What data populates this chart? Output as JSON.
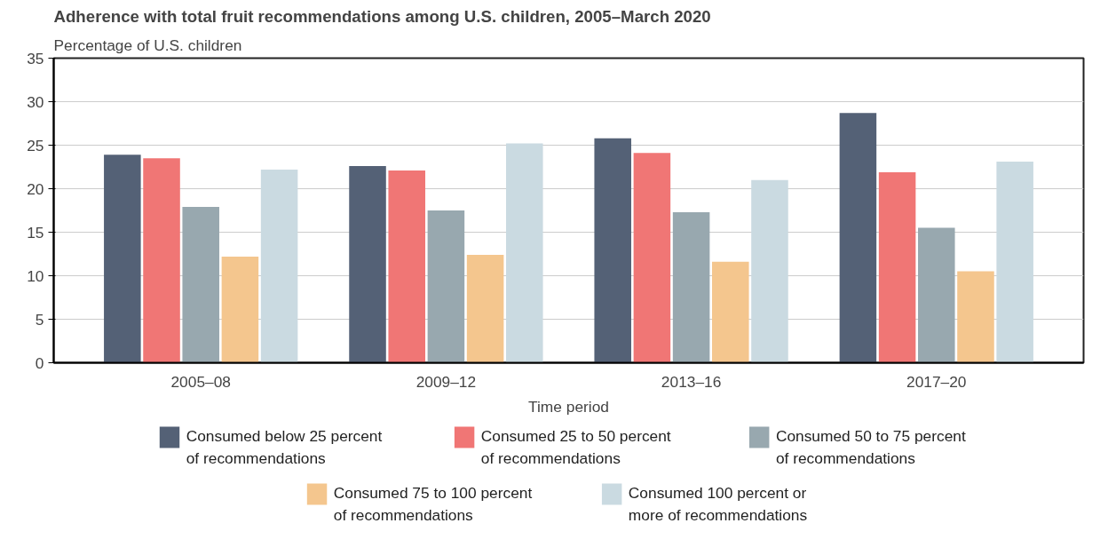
{
  "chart_data": {
    "type": "bar",
    "title": "Adherence with total fruit recommendations among U.S. children, 2005–March 2020",
    "ylabel": "Percentage of U.S. children",
    "xlabel": "Time period",
    "categories": [
      "2005–08",
      "2009–12",
      "2013–16",
      "2017–20"
    ],
    "series": [
      {
        "name": "Consumed below 25 percent of recommendations",
        "color": "#546176",
        "values": [
          23.9,
          22.6,
          25.8,
          28.7
        ]
      },
      {
        "name": "Consumed 25 to 50 percent of recommendations",
        "color": "#f07675",
        "values": [
          23.5,
          22.1,
          24.1,
          21.9
        ]
      },
      {
        "name": "Consumed 50 to 75 percent of recommendations",
        "color": "#98a8af",
        "values": [
          17.9,
          17.5,
          17.3,
          15.5
        ]
      },
      {
        "name": "Consumed 75 to 100 percent of recommendations",
        "color": "#f4c68e",
        "values": [
          12.2,
          12.4,
          11.6,
          10.5
        ]
      },
      {
        "name": "Consumed 100 percent or more of recommendations",
        "color": "#cadae1",
        "values": [
          22.2,
          25.2,
          21.0,
          23.1
        ]
      }
    ],
    "ylim": [
      0,
      35
    ],
    "yticks": [
      0,
      5,
      10,
      15,
      20,
      25,
      30,
      35
    ],
    "grid": "y",
    "legend": "bottom"
  }
}
